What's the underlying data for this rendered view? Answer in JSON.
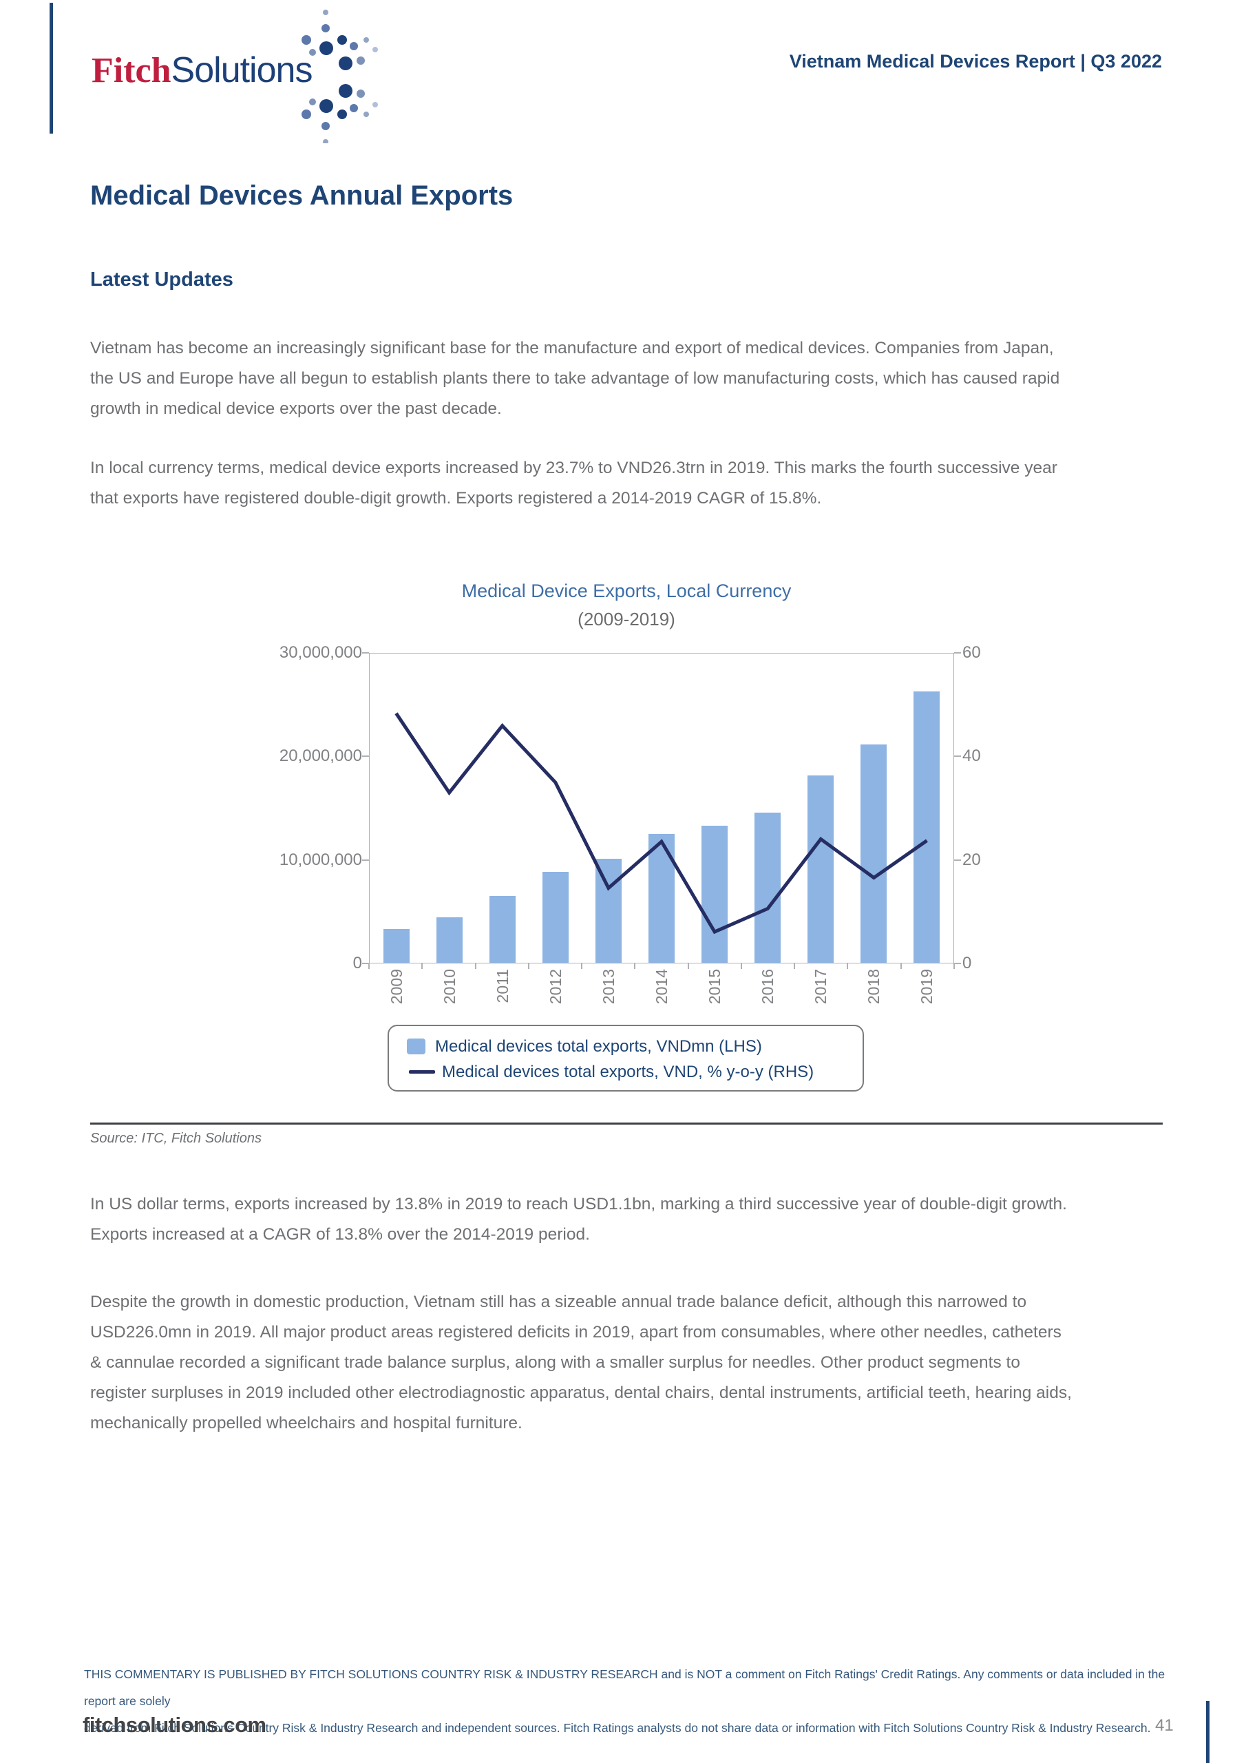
{
  "header": {
    "logo_fitch": "Fitch",
    "logo_solutions": "Solutions",
    "report_title": "Vietnam Medical Devices Report | Q3 2022"
  },
  "page": {
    "title": "Medical Devices Annual Exports",
    "section_heading": "Latest Updates",
    "paragraphs": [
      "Vietnam has become an increasingly significant base for the manufacture and export of medical devices. Companies from Japan,\nthe US and Europe have all begun to establish plants there to take advantage of low manufacturing costs, which has caused rapid\ngrowth in medical device exports over the past decade.",
      "In local currency terms, medical device exports increased by 23.7% to VND26.3trn in 2019. This marks the fourth successive year\nthat exports have registered double-digit growth. Exports registered a 2014-2019 CAGR of 15.8%."
    ],
    "source_note": "Source: ITC, Fitch Solutions",
    "paragraphs_after": [
      "In US dollar terms, exports increased by 13.8% in 2019 to reach USD1.1bn, marking a third successive year of double-digit growth.\nExports increased at a CAGR of 13.8% over the 2014-2019 period.",
      "Despite the growth in domestic production, Vietnam still has a sizeable annual trade balance deficit, although this narrowed to\nUSD226.0mn in 2019. All major product areas registered deficits in 2019, apart from consumables, where other needles, catheters\n& cannulae recorded a significant trade balance surplus, along with a smaller surplus for needles. Other product segments to\nregister surpluses in 2019 included other electrodiagnostic apparatus, dental chairs, dental instruments, artificial teeth, hearing aids,\nmechanically propelled wheelchairs and hospital furniture."
    ]
  },
  "chart_data": {
    "type": "bar",
    "title": "Medical Device Exports, Local Currency",
    "subtitle": "(2009-2019)",
    "categories": [
      "2009",
      "2010",
      "2011",
      "2012",
      "2013",
      "2014",
      "2015",
      "2016",
      "2017",
      "2018",
      "2019"
    ],
    "series": [
      {
        "name": "Medical devices total exports, VNDmn (LHS)",
        "type": "bar",
        "axis": "left",
        "color": "#8db4e2",
        "values": [
          3300000,
          4400000,
          6500000,
          8800000,
          10100000,
          12500000,
          13300000,
          14600000,
          18200000,
          21200000,
          26300000
        ]
      },
      {
        "name": "Medical devices total exports, VND, % y-o-y (RHS)",
        "type": "line",
        "axis": "right",
        "color": "#252d63",
        "values": [
          48.4,
          33,
          46,
          35,
          14.5,
          23.5,
          6,
          10.5,
          24,
          16.5,
          23.7
        ]
      }
    ],
    "left_axis": {
      "min": 0,
      "max": 30000000,
      "ticks": [
        "0",
        "10,000,000",
        "20,000,000",
        "30,000,000"
      ]
    },
    "right_axis": {
      "min": 0,
      "max": 60,
      "ticks": [
        "0",
        "20",
        "40",
        "60"
      ]
    },
    "legend_position": "bottom",
    "grid": false
  },
  "footer": {
    "disclaimer": "THIS COMMENTARY IS PUBLISHED BY FITCH SOLUTIONS COUNTRY RISK & INDUSTRY RESEARCH and is NOT a comment on Fitch Ratings' Credit Ratings. Any comments or data included in the report are solely\nderived from Fitch Solutions Country Risk & Industry Research and independent sources. Fitch Ratings analysts do not share data or information with Fitch Solutions Country Risk & Industry Research.",
    "site": "fitchsolutions.com",
    "page_number": "41"
  },
  "colors": {
    "heading_navy": "#1e4575",
    "fitch_red": "#bf1e3e",
    "body_gray": "#6e7073",
    "chart_title_blue": "#3e6ea6",
    "bar_blue": "#8db4e2",
    "line_navy": "#252d63",
    "axis_gray": "#b0b1b3",
    "footer_blue": "#35587c"
  }
}
